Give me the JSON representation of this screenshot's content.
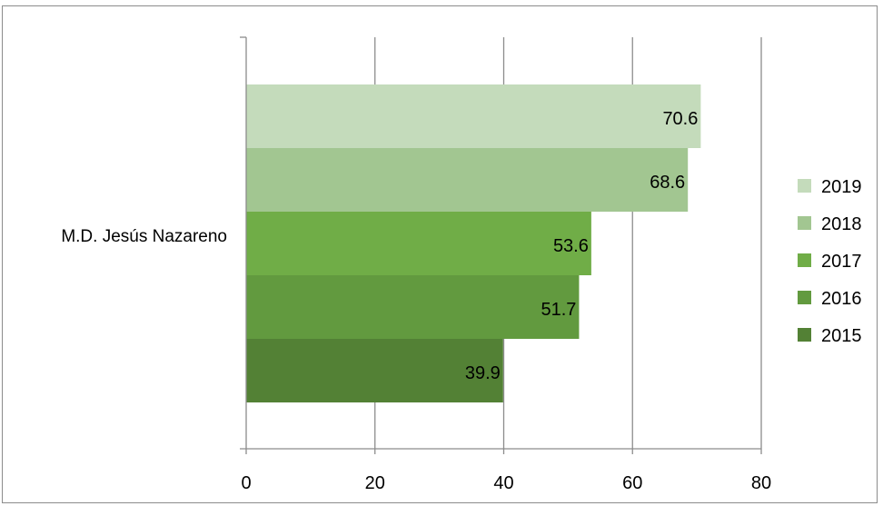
{
  "chart_data": {
    "type": "bar",
    "orientation": "horizontal",
    "categories": [
      "M.D. Jesús Nazareno"
    ],
    "series": [
      {
        "name": "2019",
        "values": [
          70.6
        ],
        "color": "#c4dbbb"
      },
      {
        "name": "2018",
        "values": [
          68.6
        ],
        "color": "#a2c691"
      },
      {
        "name": "2017",
        "values": [
          53.6
        ],
        "color": "#70ad47"
      },
      {
        "name": "2016",
        "values": [
          51.7
        ],
        "color": "#629a3f"
      },
      {
        "name": "2015",
        "values": [
          39.9
        ],
        "color": "#538135"
      }
    ],
    "title": "",
    "xlabel": "",
    "ylabel": "",
    "xlim": [
      0,
      80
    ],
    "xticks": [
      0,
      20,
      40,
      60,
      80
    ],
    "grid": true,
    "legend": "right"
  }
}
